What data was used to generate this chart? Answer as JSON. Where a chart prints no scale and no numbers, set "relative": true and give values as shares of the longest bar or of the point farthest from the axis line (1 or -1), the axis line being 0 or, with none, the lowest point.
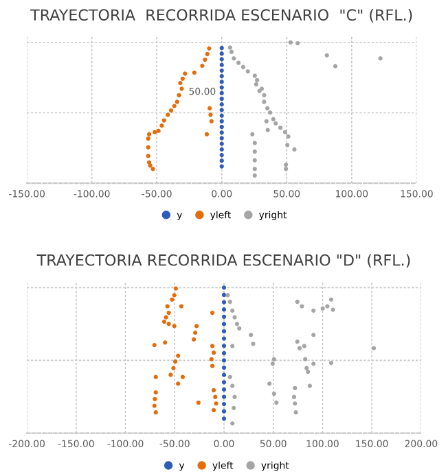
{
  "chart_data": [
    {
      "type": "scatter",
      "title": "TRAYECTORIA  RECORRIDA ESCENARIO  \"C\" (RFL.)",
      "relative": true,
      "grid": true,
      "legend": "bottom",
      "marker": "circle",
      "tick_labels": "x",
      "xlim": [
        -150,
        150
      ],
      "xticks": [
        {
          "value": -150,
          "label": "-150.00"
        },
        {
          "value": -100,
          "label": "-100.00"
        },
        {
          "value": -50,
          "label": "-50.00"
        },
        {
          "value": 0,
          "label": "0.00"
        },
        {
          "value": 50,
          "label": "50.00"
        },
        {
          "value": 100,
          "label": "100.00"
        },
        {
          "value": 150,
          "label": "150.00"
        }
      ],
      "annotations": [
        "50.00"
      ],
      "series": [
        {
          "name": "y",
          "color": "#2e5cb8",
          "x": [
            0,
            0,
            0,
            0,
            0,
            0,
            0,
            0,
            0,
            0,
            0,
            0,
            0,
            0,
            0,
            0,
            0,
            0,
            0,
            0,
            0,
            0
          ],
          "values": [
            0.12,
            0.16,
            0.2,
            0.24,
            0.28,
            0.32,
            0.36,
            0.4,
            0.44,
            0.48,
            0.52,
            0.56,
            0.6,
            0.64,
            0.68,
            0.72,
            0.76,
            0.8,
            0.84,
            0.88,
            0.92,
            0.96
          ]
        },
        {
          "name": "yleft",
          "color": "#e46c0a",
          "x": [
            -9.7,
            -11.1,
            -12.9,
            -15.0,
            -21.1,
            -28.3,
            -30.1,
            -31.9,
            -30.8,
            -32.9,
            -34.4,
            -36.5,
            -39.0,
            -41.5,
            -44.4,
            -46.2,
            -48.7,
            -51.6,
            -55.9,
            -56.6,
            -56.6,
            -56.6,
            -55.9,
            -55.1,
            -53.0,
            -9.3,
            -8.6,
            -7.9,
            -11.5
          ],
          "values": [
            0.957,
            0.917,
            0.877,
            0.834,
            0.785,
            0.778,
            0.742,
            0.711,
            0.671,
            0.625,
            0.578,
            0.548,
            0.517,
            0.486,
            0.446,
            0.409,
            0.372,
            0.363,
            0.348,
            0.317,
            0.255,
            0.194,
            0.148,
            0.126,
            0.102,
            0.532,
            0.486,
            0.44,
            0.348
          ]
        },
        {
          "name": "yright",
          "color": "#a5a5a5",
          "x": [
            6.4,
            7.5,
            9.3,
            12.9,
            16.5,
            20.1,
            25.4,
            27.2,
            26.5,
            29.0,
            32.6,
            30.8,
            32.6,
            35.1,
            37.2,
            39.7,
            41.5,
            45.1,
            48.7,
            51.2,
            34.4,
            35.4,
            23.6,
            25.4,
            25.4,
            25.4,
            25.4,
            25.4,
            50.5,
            55.9,
            49.4,
            49.4,
            53.0,
            58.4,
            80.9,
            87.4,
            122.1
          ],
          "values": [
            0.963,
            0.932,
            0.886,
            0.855,
            0.825,
            0.794,
            0.763,
            0.732,
            0.702,
            0.655,
            0.625,
            0.671,
            0.578,
            0.532,
            0.502,
            0.455,
            0.425,
            0.394,
            0.363,
            0.332,
            0.44,
            0.378,
            0.348,
            0.286,
            0.225,
            0.163,
            0.102,
            0.055,
            0.271,
            0.24,
            0.132,
            0.102,
            1.0,
            0.994,
            0.908,
            0.831,
            0.886
          ]
        }
      ]
    },
    {
      "type": "scatter",
      "title": "TRAYECTORIA RECORRIDA ESCENARIO \"D\" (RFL.)",
      "relative": true,
      "grid": true,
      "legend": "bottom",
      "marker": "circle",
      "tick_labels": "x",
      "xlim": [
        -200,
        200
      ],
      "xticks": [
        {
          "value": -200,
          "label": "-200.00"
        },
        {
          "value": -150,
          "label": "-150.00"
        },
        {
          "value": -100,
          "label": "-100.00"
        },
        {
          "value": -50,
          "label": "-50.00"
        },
        {
          "value": 0,
          "label": "0.00"
        },
        {
          "value": 50,
          "label": "50.00"
        },
        {
          "value": 100,
          "label": "100.00"
        },
        {
          "value": 150,
          "label": "150.00"
        },
        {
          "value": 200,
          "label": "200.00"
        }
      ],
      "series": [
        {
          "name": "y",
          "color": "#2e5cb8",
          "x": [
            0,
            0,
            0,
            0,
            0,
            0,
            0,
            0,
            0,
            0,
            0,
            0,
            0,
            0,
            0,
            0,
            0,
            0,
            0
          ],
          "values": [
            0.1,
            0.15,
            0.2,
            0.25,
            0.3,
            0.35,
            0.4,
            0.45,
            0.5,
            0.55,
            0.6,
            0.65,
            0.7,
            0.75,
            0.8,
            0.85,
            0.9,
            0.95,
            1.0
          ]
        },
        {
          "name": "yleft",
          "color": "#e46c0a",
          "x": [
            -48.9,
            -50.4,
            -52.7,
            -57.4,
            -56.0,
            -58.8,
            -56.0,
            -60.7,
            -43.3,
            -50.4,
            -11.8,
            -27.8,
            -29.2,
            -30.6,
            -59.8,
            -70.6,
            -46.6,
            -49.4,
            -51.3,
            -54.1,
            -69.2,
            -46.6,
            -41.9,
            -11.8,
            -10.4,
            -12.7,
            -11.8,
            -69.2,
            -70.1,
            -70.6,
            -69.2,
            -25.9,
            -10.4,
            -8.9,
            -8.0,
            -10.4
          ],
          "values": [
            0.994,
            0.948,
            0.918,
            0.872,
            0.827,
            0.796,
            0.751,
            0.766,
            0.872,
            0.736,
            0.827,
            0.736,
            0.69,
            0.644,
            0.623,
            0.605,
            0.532,
            0.492,
            0.447,
            0.401,
            0.386,
            0.34,
            0.386,
            0.599,
            0.553,
            0.508,
            0.462,
            0.28,
            0.234,
            0.188,
            0.143,
            0.21,
            0.295,
            0.249,
            0.204,
            0.158
          ]
        },
        {
          "name": "yright",
          "color": "#a5a5a5",
          "x": [
            3.8,
            6.1,
            8.5,
            10.8,
            13.2,
            15.5,
            27.3,
            29.6,
            8.5,
            6.1,
            8.5,
            10.8,
            9.9,
            8.5,
            50.8,
            49.4,
            46.1,
            50.8,
            53.2,
            72.0,
            71.1,
            72.0,
            72.9,
            74.4,
            79.1,
            90.8,
            100.2,
            108.7,
            110.6,
            104.9,
            74.4,
            76.7,
            81.4,
            90.8,
            82.4,
            83.8,
            85.2,
            90.8,
            87.1,
            108.7,
            152.0
          ],
          "values": [
            0.948,
            0.903,
            0.842,
            0.796,
            0.751,
            0.72,
            0.675,
            0.614,
            0.599,
            0.386,
            0.325,
            0.249,
            0.173,
            0.067,
            0.508,
            0.477,
            0.34,
            0.271,
            0.21,
            0.31,
            0.249,
            0.204,
            0.143,
            0.903,
            0.872,
            0.842,
            0.857,
            0.918,
            0.848,
            0.872,
            0.629,
            0.584,
            0.599,
            0.675,
            0.508,
            0.447,
            0.422,
            0.477,
            0.325,
            0.483,
            0.584
          ]
        }
      ]
    }
  ]
}
